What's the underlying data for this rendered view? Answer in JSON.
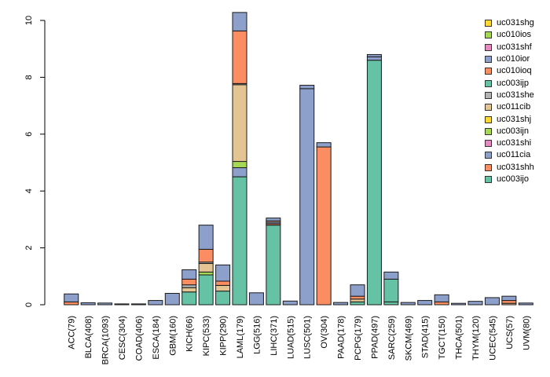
{
  "chart_data": {
    "type": "bar",
    "stacked": true,
    "title": "",
    "xlabel": "",
    "ylabel": "",
    "ylim": [
      0,
      10
    ],
    "yticks": [
      "0",
      "2",
      "4",
      "6",
      "8",
      "10"
    ],
    "categories": [
      "ACC(79)",
      "BLCA(408)",
      "BRCA(1093)",
      "CESC(304)",
      "COAD(406)",
      "ESCA(184)",
      "GBM(160)",
      "KICH(66)",
      "KIPC(533)",
      "KIPP(290)",
      "LAML(179)",
      "LGG(516)",
      "LIHC(371)",
      "LUAD(515)",
      "LUSC(501)",
      "OV(304)",
      "PAAD(178)",
      "PCPG(179)",
      "PPAD(497)",
      "SARC(259)",
      "SKCM(469)",
      "STAD(415)",
      "TGCT(150)",
      "THCA(501)",
      "THYM(120)",
      "UCEC(545)",
      "UCS(57)",
      "UVM(80)"
    ],
    "series": [
      {
        "name": "uc003ijo",
        "color": "#66c2a5",
        "values": [
          0,
          0,
          0,
          0,
          0,
          0,
          0,
          0.45,
          1.05,
          0.48,
          4.5,
          0,
          2.8,
          0,
          0,
          0,
          0,
          0.1,
          8.6,
          0.1,
          0,
          0,
          0,
          0,
          0,
          0,
          0,
          0
        ]
      },
      {
        "name": "uc031shh",
        "color": "#fc8d62",
        "values": [
          0,
          0,
          0,
          0,
          0,
          0,
          0,
          0,
          0,
          0,
          0,
          0,
          0.05,
          0,
          0,
          5.55,
          0,
          0,
          0,
          0,
          0,
          0,
          0,
          0,
          0,
          0,
          0,
          0
        ]
      },
      {
        "name": "uc011cia",
        "color": "#8da0cb",
        "values": [
          0,
          0,
          0,
          0,
          0,
          0,
          0,
          0,
          0,
          0,
          0.32,
          0,
          0.05,
          0,
          7.6,
          0.15,
          0,
          0,
          0.12,
          0,
          0,
          0,
          0,
          0,
          0,
          0,
          0,
          0
        ]
      },
      {
        "name": "uc031shi",
        "color": "#e78ac3",
        "values": [
          0,
          0,
          0,
          0,
          0,
          0,
          0,
          0,
          0,
          0,
          0,
          0,
          0,
          0,
          0,
          0,
          0,
          0,
          0,
          0,
          0,
          0,
          0,
          0,
          0,
          0,
          0,
          0
        ]
      },
      {
        "name": "uc003ijn",
        "color": "#a6d854",
        "values": [
          0,
          0,
          0,
          0,
          0,
          0,
          0,
          0,
          0.1,
          0,
          0.22,
          0,
          0,
          0,
          0,
          0,
          0,
          0,
          0,
          0,
          0,
          0,
          0,
          0,
          0,
          0,
          0,
          0
        ]
      },
      {
        "name": "uc031shj",
        "color": "#ffd92f",
        "values": [
          0,
          0,
          0,
          0,
          0,
          0,
          0,
          0,
          0,
          0,
          0,
          0,
          0,
          0,
          0,
          0,
          0,
          0,
          0,
          0,
          0,
          0,
          0,
          0,
          0,
          0,
          0,
          0
        ]
      },
      {
        "name": "uc011cib",
        "color": "#e5c494",
        "values": [
          0,
          0,
          0,
          0,
          0,
          0,
          0,
          0.15,
          0.3,
          0.2,
          2.7,
          0,
          0.05,
          0,
          0,
          0,
          0,
          0.1,
          0,
          0,
          0,
          0,
          0,
          0,
          0,
          0,
          0.05,
          0
        ]
      },
      {
        "name": "uc031she",
        "color": "#b3b3b3",
        "values": [
          0,
          0,
          0,
          0,
          0,
          0,
          0,
          0.1,
          0.05,
          0,
          0.04,
          0,
          0,
          0,
          0,
          0,
          0,
          0,
          0,
          0,
          0,
          0,
          0,
          0,
          0,
          0,
          0,
          0
        ]
      },
      {
        "name": "uc003ijp",
        "color": "#66c2a5",
        "values": [
          0,
          0,
          0,
          0,
          0,
          0,
          0,
          0,
          0,
          0,
          0,
          0,
          0,
          0,
          0,
          0,
          0,
          0,
          0,
          0.8,
          0,
          0,
          0,
          0,
          0,
          0,
          0,
          0
        ]
      },
      {
        "name": "uc010ioq",
        "color": "#fc8d62",
        "values": [
          0.1,
          0,
          0,
          0,
          0,
          0,
          0,
          0.2,
          0.45,
          0.15,
          1.85,
          0,
          0,
          0,
          0,
          0,
          0,
          0.1,
          0,
          0,
          0,
          0,
          0.1,
          0,
          0,
          0,
          0.1,
          0
        ]
      },
      {
        "name": "uc010ior",
        "color": "#8da0cb",
        "values": [
          0.28,
          0.07,
          0.06,
          0.03,
          0.03,
          0.15,
          0.4,
          0.33,
          0.85,
          0.57,
          0.65,
          0.42,
          0.1,
          0.13,
          0.12,
          0,
          0.08,
          0.4,
          0.08,
          0.25,
          0.08,
          0.15,
          0.25,
          0.05,
          0.12,
          0.25,
          0.15,
          0.06
        ]
      },
      {
        "name": "uc031shf",
        "color": "#e78ac3",
        "values": [
          0,
          0,
          0,
          0,
          0,
          0,
          0,
          0,
          0,
          0,
          0,
          0,
          0,
          0,
          0,
          0,
          0,
          0,
          0,
          0,
          0,
          0,
          0,
          0,
          0,
          0,
          0,
          0
        ]
      },
      {
        "name": "uc010ios",
        "color": "#a6d854",
        "values": [
          0,
          0,
          0,
          0,
          0,
          0,
          0,
          0,
          0,
          0,
          0,
          0,
          0,
          0,
          0,
          0,
          0,
          0,
          0,
          0,
          0,
          0,
          0,
          0,
          0,
          0,
          0,
          0
        ]
      },
      {
        "name": "uc031shg",
        "color": "#ffd92f",
        "values": [
          0,
          0,
          0,
          0,
          0,
          0,
          0,
          0,
          0,
          0,
          0,
          0,
          0,
          0,
          0,
          0,
          0,
          0,
          0,
          0,
          0,
          0,
          0,
          0,
          0,
          0,
          0,
          0
        ]
      }
    ],
    "legend_position": "top-right",
    "legend": [
      {
        "name": "uc031shg",
        "color": "#ffd92f"
      },
      {
        "name": "uc010ios",
        "color": "#a6d854"
      },
      {
        "name": "uc031shf",
        "color": "#e78ac3"
      },
      {
        "name": "uc010ior",
        "color": "#8da0cb"
      },
      {
        "name": "uc010ioq",
        "color": "#fc8d62"
      },
      {
        "name": "uc003ijp",
        "color": "#66c2a5"
      },
      {
        "name": "uc031she",
        "color": "#b3b3b3"
      },
      {
        "name": "uc011cib",
        "color": "#e5c494"
      },
      {
        "name": "uc031shj",
        "color": "#ffd92f"
      },
      {
        "name": "uc003ijn",
        "color": "#a6d854"
      },
      {
        "name": "uc031shi",
        "color": "#e78ac3"
      },
      {
        "name": "uc011cia",
        "color": "#8da0cb"
      },
      {
        "name": "uc031shh",
        "color": "#fc8d62"
      },
      {
        "name": "uc003ijo",
        "color": "#66c2a5"
      }
    ]
  }
}
